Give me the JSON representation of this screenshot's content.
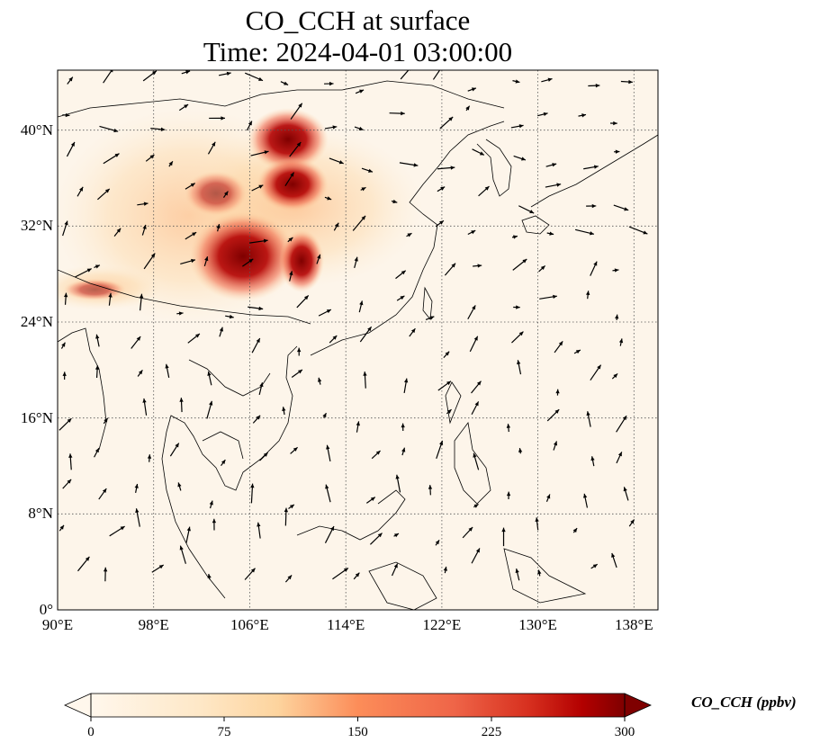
{
  "title": {
    "line1": "CO_CCH at surface",
    "line2": "Time: 2024-04-01 03:00:00"
  },
  "map": {
    "lon_range": [
      90,
      140
    ],
    "lat_range": [
      0,
      45
    ],
    "lat_labels": [
      "0°",
      "8°N",
      "16°N",
      "24°N",
      "32°N",
      "40°N"
    ],
    "lon_labels": [
      "90°E",
      "98°E",
      "106°E",
      "114°E",
      "122°E",
      "130°E",
      "138°E"
    ],
    "gridlines": true,
    "field": "CO_CCH",
    "wind_vectors": true
  },
  "colorbar": {
    "label": "CO_CCH (ppbv)",
    "ticks": [
      "0",
      "75",
      "150",
      "225",
      "300"
    ],
    "min": 0,
    "max": 300,
    "extend": "both",
    "colormap": "OrRd",
    "colors": [
      "#fff7ec",
      "#fdd49e",
      "#fc8d59",
      "#d7301f",
      "#7f0000"
    ]
  }
}
